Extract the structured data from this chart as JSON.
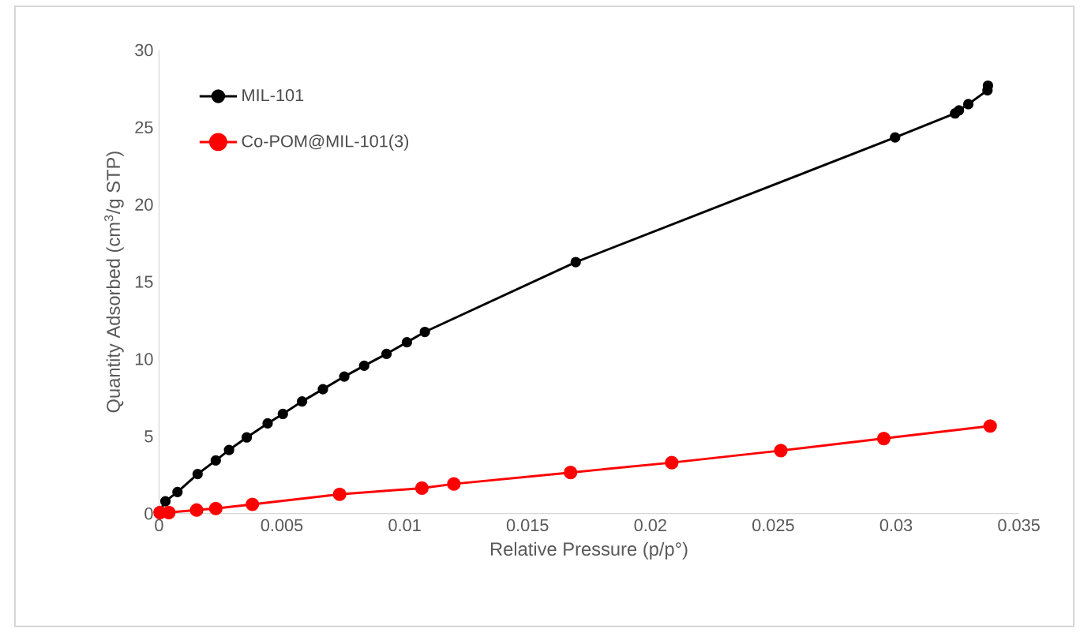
{
  "chart_data": {
    "type": "line",
    "xlabel": "Relative Pressure (p/p°)",
    "ylabel": "Quantity Adsorbed (cm$^{3}$/g STP)",
    "xlim": [
      0,
      0.035
    ],
    "xticks": [
      0,
      0.005,
      0.01,
      0.015,
      0.02,
      0.025,
      0.03,
      0.035
    ],
    "ylim": [
      0,
      30
    ],
    "yticks": [
      0,
      5,
      10,
      15,
      20,
      25,
      30
    ],
    "grid": false,
    "legend": "top left",
    "marker": "circle",
    "line_style": "solid",
    "series": [
      {
        "name": "MIL-101",
        "color": "#000000",
        "x": [
          0,
          0.00026,
          0.00075,
          0.00157,
          0.00231,
          0.00285,
          0.00357,
          0.00442,
          0.00504,
          0.00582,
          0.00667,
          0.00754,
          0.00835,
          0.00926,
          0.01009,
          0.01082,
          0.01696,
          0.02996,
          0.0324,
          0.03256,
          0.03294,
          0.03372,
          0.03374
        ],
        "values": [
          0.1,
          0.8,
          1.4,
          2.56,
          3.44,
          4.12,
          4.93,
          5.84,
          6.45,
          7.26,
          8.05,
          8.87,
          9.57,
          10.34,
          11.09,
          11.76,
          16.28,
          24.35,
          25.9,
          26.1,
          26.5,
          27.4,
          27.7
        ]
      },
      {
        "name": "Co-POM@MIL-101(3)",
        "color": "#ff0000",
        "x": [
          4e-05,
          0.0004,
          0.00153,
          0.00231,
          0.0038,
          0.00735,
          0.0107,
          0.012,
          0.01675,
          0.02087,
          0.02531,
          0.0295,
          0.03383
        ],
        "values": [
          0.07,
          0.07,
          0.23,
          0.33,
          0.6,
          1.25,
          1.65,
          1.92,
          2.66,
          3.3,
          4.08,
          4.86,
          5.67
        ]
      }
    ]
  }
}
